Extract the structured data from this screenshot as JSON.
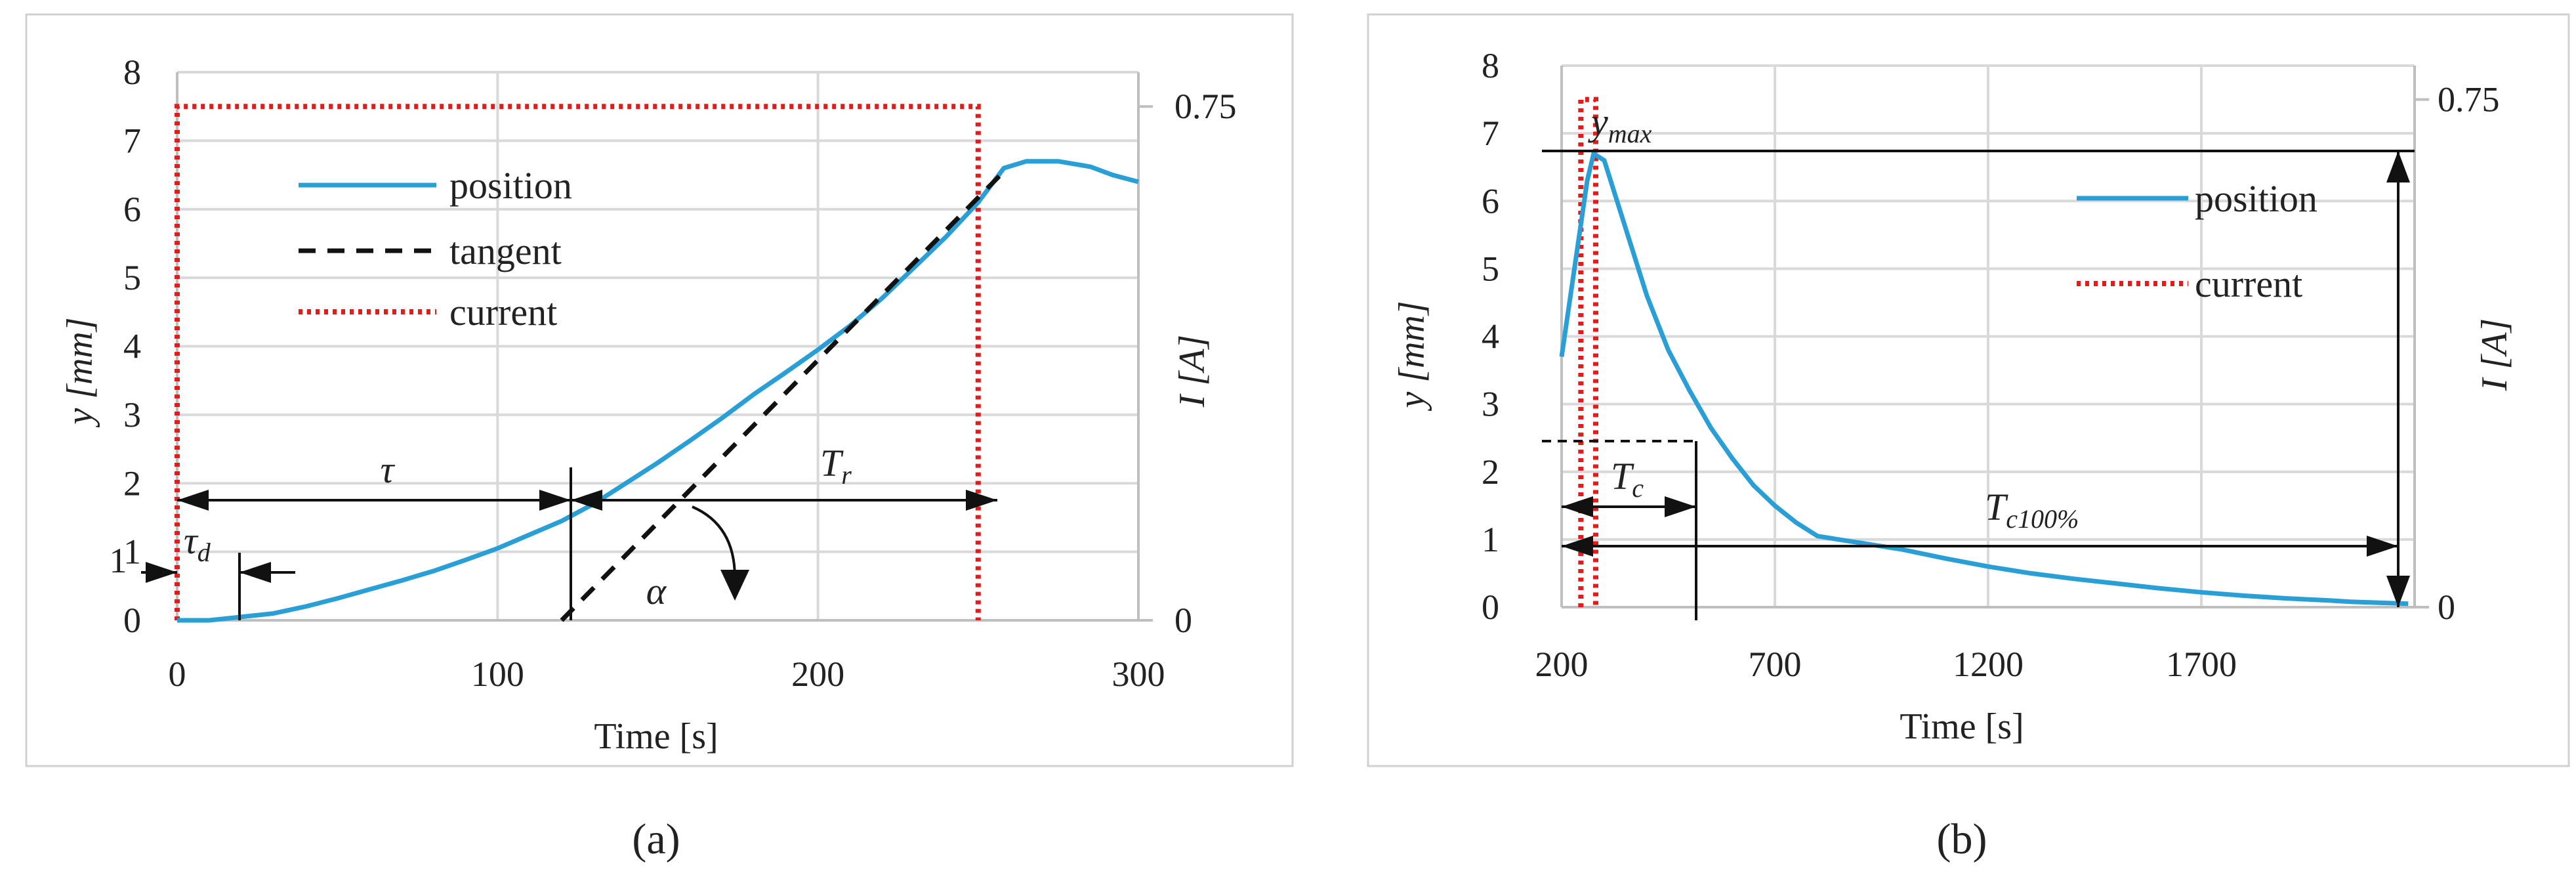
{
  "chart_data": [
    {
      "id": "a",
      "type": "line",
      "caption": "(a)",
      "xlabel": "Time [s]",
      "ylabel_left": "y [mm]",
      "ylabel_right": "I [A]",
      "xlim": [
        0,
        300
      ],
      "ylim_left": [
        0,
        8
      ],
      "ylim_right": [
        0,
        0.8
      ],
      "x_ticks": [
        0,
        100,
        200,
        300
      ],
      "y_ticks_left": [
        0,
        1,
        2,
        3,
        4,
        5,
        6,
        7,
        8
      ],
      "y_ticks_right": [
        0,
        0.75
      ],
      "y_tick_labels_right": [
        "0",
        "0.75"
      ],
      "legend": [
        "position",
        "tangent",
        "current"
      ],
      "series": [
        {
          "name": "position",
          "x": [
            0,
            10,
            20,
            30,
            40,
            50,
            60,
            70,
            80,
            90,
            100,
            110,
            120,
            130,
            140,
            150,
            160,
            170,
            180,
            190,
            200,
            210,
            220,
            230,
            240,
            250,
            258,
            265,
            275,
            285,
            292,
            300
          ],
          "y": [
            0.0,
            0.0,
            0.05,
            0.1,
            0.2,
            0.32,
            0.45,
            0.58,
            0.72,
            0.88,
            1.05,
            1.25,
            1.45,
            1.7,
            2.0,
            2.3,
            2.62,
            2.95,
            3.3,
            3.62,
            3.95,
            4.3,
            4.7,
            5.15,
            5.6,
            6.1,
            6.6,
            6.7,
            6.7,
            6.62,
            6.5,
            6.4
          ]
        },
        {
          "name": "tangent",
          "x": [
            120,
            258
          ],
          "y": [
            0,
            6.55
          ]
        },
        {
          "name": "current",
          "x": [
            0,
            0,
            250,
            250
          ],
          "y": [
            0,
            0.75,
            0.75,
            0
          ]
        }
      ],
      "annotations": {
        "tau": "τ",
        "tau_d": "τ",
        "tau_d_sub": "d",
        "Tr": "T",
        "Tr_sub": "r",
        "alpha": "α"
      }
    },
    {
      "id": "b",
      "type": "line",
      "caption": "(b)",
      "xlabel": "Time [s]",
      "ylabel_left": "y [mm]",
      "ylabel_right": "I [A]",
      "xlim": [
        200,
        2200
      ],
      "ylim_left": [
        0,
        8
      ],
      "ylim_right": [
        0,
        0.8
      ],
      "x_ticks": [
        200,
        700,
        1200,
        1700
      ],
      "y_ticks_left": [
        0,
        1,
        2,
        3,
        4,
        5,
        6,
        7,
        8
      ],
      "y_ticks_right": [
        0,
        0.75
      ],
      "y_tick_labels_right": [
        "0",
        "0.75"
      ],
      "legend": [
        "position",
        "current"
      ],
      "series": [
        {
          "name": "position",
          "x": [
            200,
            230,
            260,
            275,
            300,
            350,
            400,
            450,
            500,
            550,
            600,
            650,
            700,
            750,
            800,
            850,
            900,
            1000,
            1100,
            1200,
            1300,
            1400,
            1500,
            1600,
            1700,
            1800,
            1900,
            2000,
            2050,
            2185
          ],
          "y": [
            3.7,
            5.0,
            6.3,
            6.7,
            6.6,
            5.6,
            4.6,
            3.8,
            3.2,
            2.65,
            2.2,
            1.8,
            1.5,
            1.25,
            1.05,
            1.0,
            0.95,
            0.85,
            0.72,
            0.6,
            0.5,
            0.42,
            0.35,
            0.28,
            0.22,
            0.17,
            0.13,
            0.1,
            0.08,
            0.05
          ]
        },
        {
          "name": "current",
          "x": [
            245,
            245,
            280,
            280
          ],
          "y": [
            0,
            0.75,
            0.75,
            0
          ]
        }
      ],
      "annotations": {
        "ymax": "y",
        "ymax_sub": "max",
        "Tc": "T",
        "Tc_sub": "c",
        "Tc100": "T",
        "Tc100_sub": "c100%"
      }
    }
  ]
}
